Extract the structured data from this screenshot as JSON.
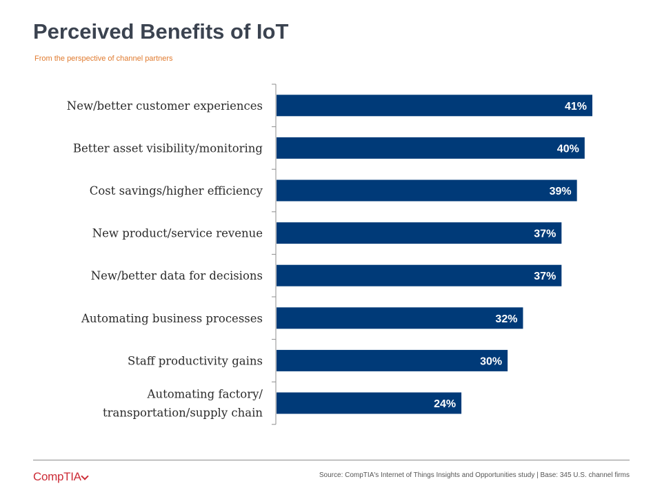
{
  "header": {
    "title": "Perceived Benefits of IoT",
    "subtitle": "From the  perspective of channel partners"
  },
  "chart_data": {
    "type": "bar",
    "orientation": "horizontal",
    "categories": [
      "New/better customer experiences",
      "Better asset visibility/monitoring",
      "Cost savings/higher efficiency",
      "New product/service revenue",
      "New/better data for decisions",
      "Automating business processes",
      "Staff productivity gains",
      "Automating factory/ transportation/supply chain"
    ],
    "category_lines": [
      [
        "New/better customer experiences"
      ],
      [
        "Better asset visibility/monitoring"
      ],
      [
        "Cost savings/higher efficiency"
      ],
      [
        "New product/service revenue"
      ],
      [
        "New/better data for decisions"
      ],
      [
        "Automating business processes"
      ],
      [
        "Staff productivity gains"
      ],
      [
        "Automating factory/",
        "transportation/supply chain"
      ]
    ],
    "values": [
      41,
      40,
      39,
      37,
      37,
      32,
      30,
      24
    ],
    "value_labels": [
      "41%",
      "40%",
      "39%",
      "37%",
      "37%",
      "32%",
      "30%",
      "24%"
    ],
    "unit": "%",
    "xlim": [
      0,
      45
    ],
    "grid": false,
    "legend": "none",
    "bar_color": "#003a78"
  },
  "footer": {
    "logo": "CompTIA",
    "source": "Source: CompTIA's Internet of Things Insights and Opportunities study | Base: 345 U.S. channel firms"
  }
}
